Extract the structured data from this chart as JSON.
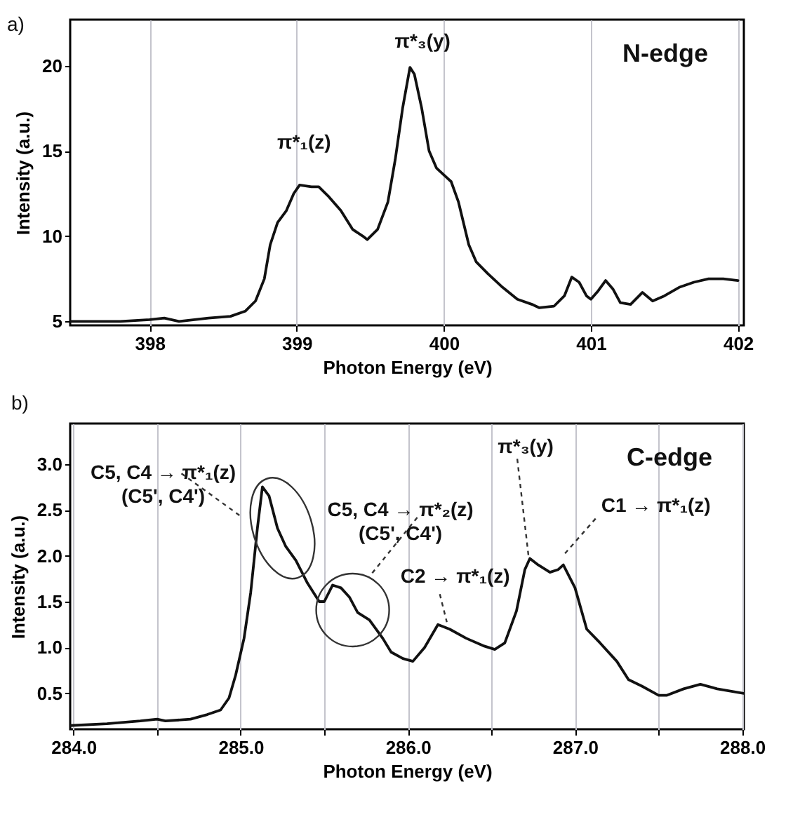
{
  "chart_data": [
    {
      "type": "line",
      "xlabel": "Photon Energy (eV)",
      "ylabel": "Intensity (a.u.)",
      "color": "#111111",
      "grid": "x",
      "xlim": [
        397.46,
        402.04
      ],
      "ylim": [
        4.77,
        22.7
      ],
      "xticks": [
        398,
        399,
        400,
        401,
        402
      ],
      "yticks": [
        5,
        10,
        15,
        20
      ],
      "x": [
        397.46,
        397.6,
        397.8,
        398.0,
        398.1,
        398.2,
        398.4,
        398.55,
        398.65,
        398.72,
        398.78,
        398.82,
        398.87,
        398.93,
        398.98,
        399.02,
        399.1,
        399.15,
        399.22,
        399.3,
        399.38,
        399.45,
        399.48,
        399.55,
        399.62,
        399.67,
        399.72,
        399.77,
        399.8,
        399.85,
        399.9,
        399.95,
        400.0,
        400.05,
        400.1,
        400.17,
        400.22,
        400.3,
        400.4,
        400.5,
        400.6,
        400.65,
        400.75,
        400.82,
        400.87,
        400.92,
        400.97,
        401.0,
        401.05,
        401.1,
        401.15,
        401.2,
        401.27,
        401.35,
        401.42,
        401.5,
        401.6,
        401.7,
        401.8,
        401.9,
        402.0
      ],
      "values": [
        5.0,
        5.0,
        5.0,
        5.1,
        5.2,
        5.0,
        5.2,
        5.3,
        5.6,
        6.2,
        7.5,
        9.5,
        10.8,
        11.5,
        12.5,
        13.0,
        12.9,
        12.9,
        12.3,
        11.5,
        10.4,
        10.0,
        9.8,
        10.4,
        12.0,
        14.5,
        17.5,
        19.9,
        19.5,
        17.5,
        15.0,
        14.0,
        13.6,
        13.2,
        12.0,
        9.5,
        8.5,
        7.8,
        7.0,
        6.3,
        6.0,
        5.8,
        5.9,
        6.5,
        7.6,
        7.3,
        6.5,
        6.3,
        6.8,
        7.4,
        6.9,
        6.1,
        6.0,
        6.7,
        6.2,
        6.5,
        7.0,
        7.3,
        7.5,
        7.5,
        7.4
      ],
      "annotations": [
        "a)",
        "N-edge",
        {
          "text": "π*₁(z)",
          "x": 399.05,
          "y": 13.0
        },
        {
          "text": "π*₃(y)",
          "x": 399.77,
          "y": 19.9
        }
      ]
    },
    {
      "type": "line",
      "xlabel": "Photon Energy (eV)",
      "ylabel": "Intensity (a.u.)",
      "color": "#111111",
      "grid": "x",
      "xlim": [
        283.98,
        288.01
      ],
      "ylim": [
        0.11,
        3.44
      ],
      "xticks": [
        {
          "value": 284,
          "label": "284.0"
        },
        {
          "value": 284.5,
          "label": null
        },
        {
          "value": 285,
          "label": "285.0"
        },
        {
          "value": 285.5,
          "label": null
        },
        {
          "value": 286,
          "label": "286.0"
        },
        {
          "value": 286.5,
          "label": null
        },
        {
          "value": 287,
          "label": "287.0"
        },
        {
          "value": 287.5,
          "label": null
        },
        {
          "value": 288,
          "label": "288.0"
        }
      ],
      "yticks": [
        0.5,
        {
          "value": 1,
          "label": "1.0"
        },
        1.5,
        {
          "value": 2,
          "label": "2.0"
        },
        2.5,
        {
          "value": 3,
          "label": "3.0"
        }
      ],
      "x": [
        283.98,
        284.2,
        284.4,
        284.5,
        284.55,
        284.7,
        284.8,
        284.88,
        284.93,
        284.97,
        285.02,
        285.06,
        285.1,
        285.13,
        285.17,
        285.22,
        285.27,
        285.33,
        285.4,
        285.47,
        285.5,
        285.55,
        285.6,
        285.65,
        285.7,
        285.77,
        285.85,
        285.9,
        285.97,
        286.03,
        286.1,
        286.18,
        286.25,
        286.35,
        286.45,
        286.52,
        286.58,
        286.65,
        286.7,
        286.73,
        286.78,
        286.85,
        286.9,
        286.93,
        287.0,
        287.07,
        287.15,
        287.25,
        287.32,
        287.4,
        287.5,
        287.55,
        287.65,
        287.75,
        287.85,
        288.01
      ],
      "values": [
        0.15,
        0.17,
        0.2,
        0.22,
        0.2,
        0.22,
        0.27,
        0.32,
        0.45,
        0.7,
        1.1,
        1.6,
        2.3,
        2.75,
        2.65,
        2.3,
        2.1,
        1.95,
        1.7,
        1.5,
        1.5,
        1.68,
        1.65,
        1.55,
        1.38,
        1.3,
        1.1,
        0.95,
        0.88,
        0.85,
        1.0,
        1.25,
        1.2,
        1.1,
        1.02,
        0.98,
        1.05,
        1.4,
        1.85,
        1.97,
        1.9,
        1.82,
        1.85,
        1.9,
        1.65,
        1.2,
        1.05,
        0.85,
        0.65,
        0.58,
        0.48,
        0.48,
        0.55,
        0.6,
        0.55,
        0.5
      ],
      "annotations": [
        "b)",
        "C-edge",
        {
          "text": "C5, C4 → π*₁(z)\n(C5', C4')",
          "x": 285.25,
          "y": 2.3
        },
        {
          "text": "C5, C4 → π*₂(z)\n(C5', C4')",
          "x": 285.67,
          "y": 1.5
        },
        {
          "text": "C2 → π*₁(z)",
          "x": 286.25,
          "y": 1.2
        },
        {
          "text": "π*₃(y)",
          "x": 286.73,
          "y": 1.97
        },
        {
          "text": "C1 → π*₁(z)",
          "x": 286.93,
          "y": 1.9
        }
      ]
    }
  ]
}
